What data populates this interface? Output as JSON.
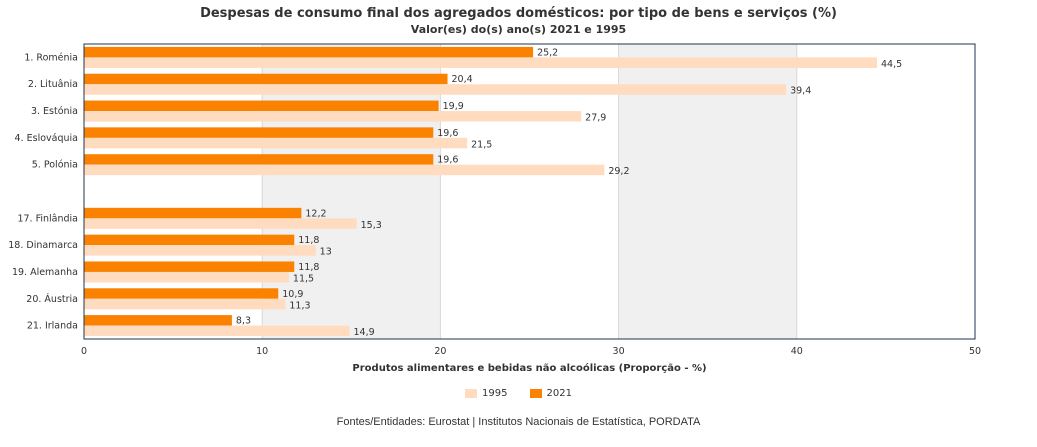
{
  "header": {
    "title": "Despesas de consumo final dos agregados domésticos: por tipo de bens e serviços (%)",
    "subtitle": "Valor(es) do(s) ano(s) 2021 e 1995"
  },
  "source": "Fontes/Entidades: Eurostat | Institutos Nacionais de Estatística, PORDATA",
  "colors": {
    "s2021": "#fb8100",
    "s1995": "#ffdbc0",
    "plot_border": "#1e3450",
    "band": "#f0f0f0"
  },
  "legend": [
    {
      "label": "1995",
      "key": "1995"
    },
    {
      "label": "2021",
      "key": "2021"
    }
  ],
  "chart_data": {
    "type": "bar",
    "orientation": "horizontal",
    "xlabel": "Produtos alimentares e bebidas não alcoólicas (Proporção - %)",
    "xlim": [
      0,
      50
    ],
    "xticks": [
      "0",
      "10",
      "20",
      "30",
      "40",
      "50"
    ],
    "grid": true,
    "legend_position": "bottom-center",
    "categories": [
      "1. Roménia",
      "2. Lituânia",
      "3. Estónia",
      "4. Eslováquia",
      "5. Polónia",
      "",
      "17. Finlândia",
      "18. Dinamarca",
      "19. Alemanha",
      "20. Áustria",
      "21. Irlanda"
    ],
    "series": [
      {
        "name": "2021",
        "values": [
          25.2,
          20.4,
          19.9,
          19.6,
          19.6,
          null,
          12.2,
          11.8,
          11.8,
          10.9,
          8.3
        ],
        "labels": [
          "25,2",
          "20,4",
          "19,9",
          "19,6",
          "19,6",
          "",
          "12,2",
          "11,8",
          "11,8",
          "10,9",
          "8,3"
        ]
      },
      {
        "name": "1995",
        "values": [
          44.5,
          39.4,
          27.9,
          21.5,
          29.2,
          null,
          15.3,
          13,
          11.5,
          11.3,
          14.9
        ],
        "labels": [
          "44,5",
          "39,4",
          "27,9",
          "21,5",
          "29,2",
          "",
          "15,3",
          "13",
          "11,5",
          "11,3",
          "14,9"
        ]
      }
    ]
  }
}
